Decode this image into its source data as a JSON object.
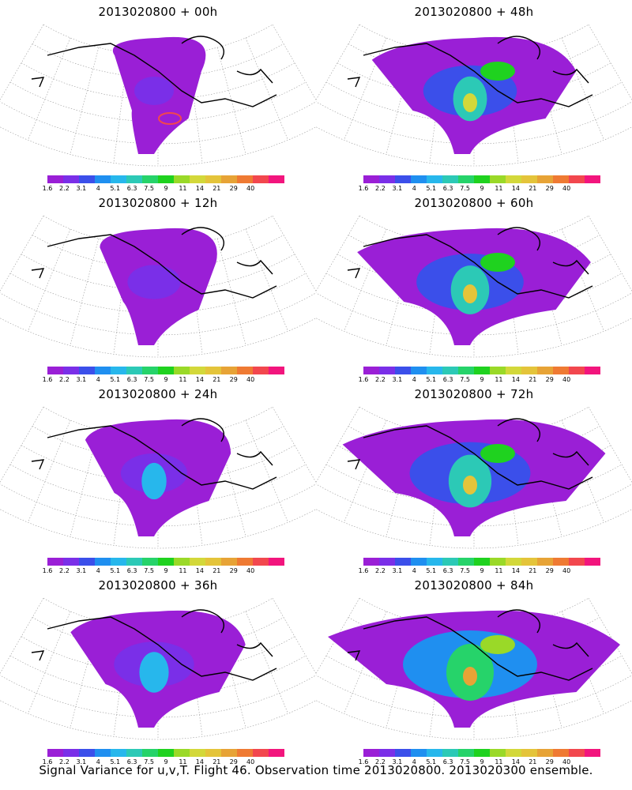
{
  "caption": "Signal Variance for u,v,T. Flight 46. Observation time 2013020800. 2013020300 ensemble.",
  "colorbar": {
    "colors": [
      "#9a1fd6",
      "#7a2fe8",
      "#3b4fea",
      "#1f8ff0",
      "#27b7ec",
      "#2cc9b6",
      "#26d36a",
      "#1fd21f",
      "#9ad928",
      "#d3d83a",
      "#e4c43a",
      "#e7a336",
      "#ef7a33",
      "#f2474e",
      "#f2157d"
    ],
    "labels": [
      "1.6",
      "2.2",
      "3.1",
      "4",
      "5.1",
      "6.3",
      "7.5",
      "9",
      "11",
      "14",
      "21",
      "29",
      "40"
    ]
  },
  "panels": [
    {
      "title": "2013020800 + 00h",
      "level": 0
    },
    {
      "title": "2013020800 + 48h",
      "level": 4
    },
    {
      "title": "2013020800 + 12h",
      "level": 1
    },
    {
      "title": "2013020800 + 60h",
      "level": 5
    },
    {
      "title": "2013020800 + 24h",
      "level": 2
    },
    {
      "title": "2013020800 + 72h",
      "level": 6
    },
    {
      "title": "2013020800 + 36h",
      "level": 3
    },
    {
      "title": "2013020800 + 84h",
      "level": 7
    }
  ]
}
